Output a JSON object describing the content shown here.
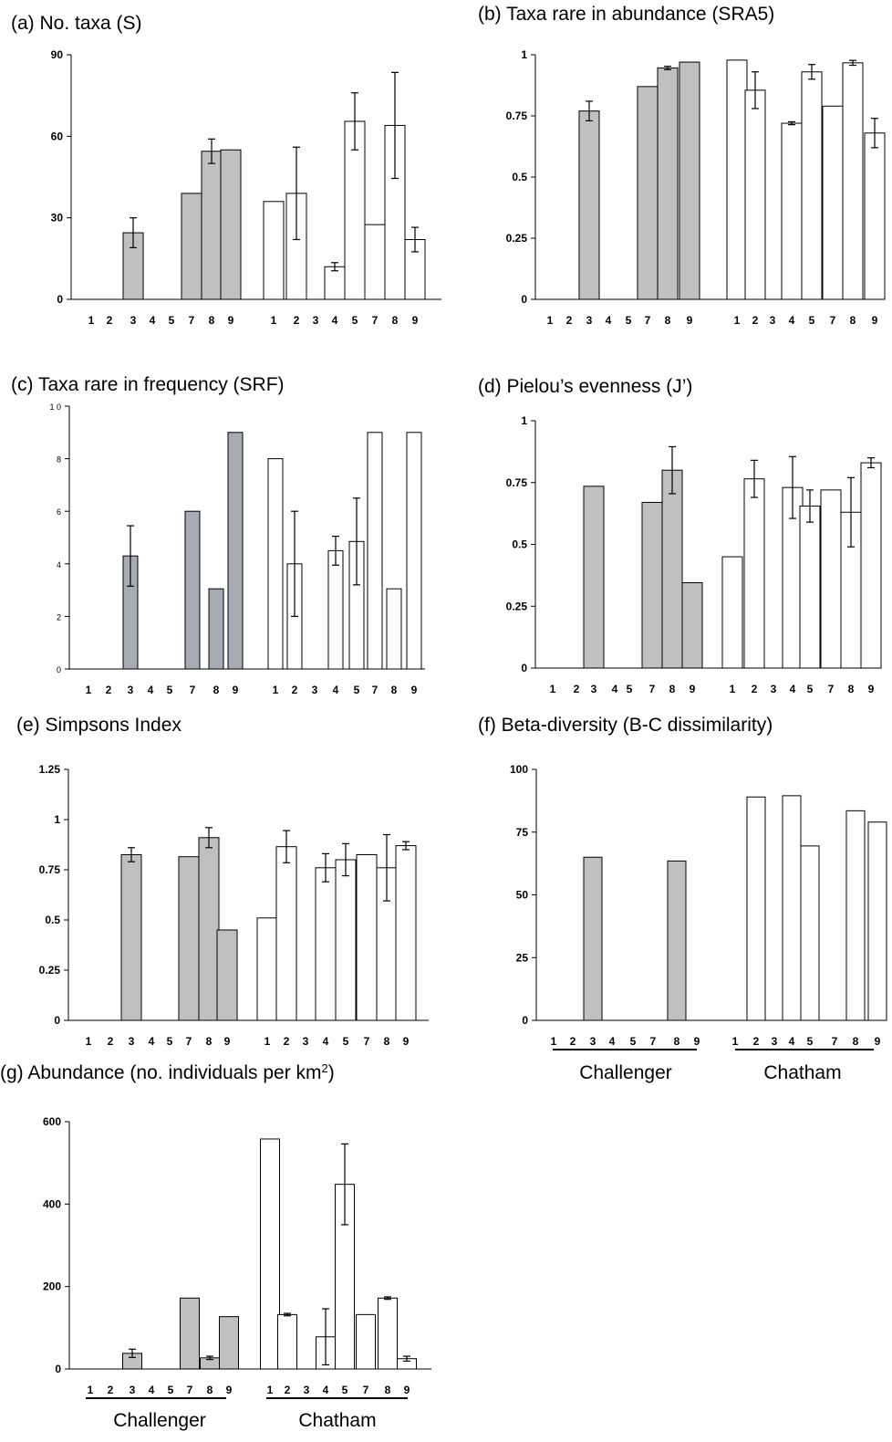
{
  "chart_data": [
    {
      "id": "a",
      "type": "bar",
      "title": "(a) No. taxa (S)",
      "yticks": [
        "0",
        "30",
        "60",
        "90"
      ],
      "ylim": [
        0,
        90
      ],
      "groups": [
        "Challenger",
        "Chatham"
      ],
      "categories": {
        "Challenger": [
          "1",
          "2",
          "3",
          "4",
          "5",
          "7",
          "8",
          "9"
        ],
        "Chatham": [
          "1",
          "2",
          "3",
          "4",
          "5",
          "7",
          "8",
          "9"
        ]
      },
      "series": [
        {
          "name": "Challenger",
          "color": "#c0c0c0",
          "values": [
            null,
            null,
            24.5,
            null,
            null,
            39,
            54.5,
            55
          ],
          "errors": [
            null,
            null,
            5.5,
            null,
            null,
            null,
            4.5,
            null
          ]
        },
        {
          "name": "Chatham",
          "color": "#ffffff",
          "values": [
            36,
            39,
            null,
            12,
            65.5,
            27.5,
            64,
            22
          ],
          "errors": [
            null,
            17,
            null,
            1.5,
            10.5,
            null,
            19.5,
            4.5
          ]
        }
      ]
    },
    {
      "id": "b",
      "type": "bar",
      "title": "(b) Taxa rare in abundance (SRA5)",
      "yticks": [
        "0",
        "0.25",
        "0.5",
        "0.75",
        "1"
      ],
      "ylim": [
        0,
        1
      ],
      "categories": {
        "Challenger": [
          "1",
          "2",
          "3",
          "4",
          "5",
          "7",
          "8",
          "9"
        ],
        "Chatham": [
          "1",
          "2",
          "3",
          "4",
          "5",
          "7",
          "8",
          "9"
        ]
      },
      "series": [
        {
          "name": "Challenger",
          "color": "#c0c0c0",
          "values": [
            null,
            null,
            0.77,
            null,
            null,
            0.87,
            0.946,
            0.97
          ],
          "errors": [
            null,
            null,
            0.04,
            null,
            null,
            null,
            0.007,
            null
          ]
        },
        {
          "name": "Chatham",
          "color": "#ffffff",
          "values": [
            0.978,
            0.855,
            null,
            0.72,
            0.93,
            0.79,
            0.967,
            0.68
          ],
          "errors": [
            null,
            0.075,
            null,
            0.006,
            0.03,
            null,
            0.01,
            0.06
          ]
        }
      ]
    },
    {
      "id": "c",
      "type": "bar",
      "title": "(c) Taxa rare in frequency (SRF)",
      "yticks": [
        "0",
        "2",
        "4",
        "6",
        "8",
        "1 0"
      ],
      "ylim": [
        0,
        10
      ],
      "categories": {
        "Challenger": [
          "1",
          "2",
          "3",
          "4",
          "5",
          "7",
          "8",
          "9"
        ],
        "Chatham": [
          "1",
          "2",
          "3",
          "4",
          "5",
          "7",
          "8",
          "9"
        ]
      },
      "series": [
        {
          "name": "Challenger",
          "color": "#a7abb4",
          "values": [
            0,
            0,
            4.3,
            0,
            0,
            6,
            3.05,
            9
          ],
          "errors": [
            null,
            null,
            1.15,
            null,
            null,
            null,
            null,
            null
          ]
        },
        {
          "name": "Chatham",
          "color": "#ffffff",
          "values": [
            8,
            4,
            null,
            4.5,
            4.85,
            9,
            3.05,
            9
          ],
          "errors": [
            null,
            2,
            null,
            0.55,
            1.65,
            null,
            null,
            null
          ]
        }
      ]
    },
    {
      "id": "d",
      "type": "bar",
      "title": "(d) Pielou’s evenness (J’)",
      "yticks": [
        "0",
        "0.25",
        "0.5",
        "0.75",
        "1"
      ],
      "ylim": [
        0,
        1
      ],
      "categories": {
        "Challenger": [
          "1",
          "2",
          "3",
          "4",
          "5",
          "7",
          "8",
          "9"
        ],
        "Chatham": [
          "1",
          "2",
          "3",
          "4",
          "5",
          "7",
          "8",
          "9"
        ]
      },
      "series": [
        {
          "name": "Challenger",
          "color": "#c0c0c0",
          "values": [
            null,
            null,
            0.735,
            null,
            null,
            0.67,
            0.8,
            0.345
          ],
          "errors": [
            null,
            null,
            null,
            null,
            null,
            null,
            0.095,
            null
          ]
        },
        {
          "name": "Chatham",
          "color": "#ffffff",
          "values": [
            0.45,
            0.765,
            null,
            0.73,
            0.655,
            0.72,
            0.63,
            0.83
          ],
          "errors": [
            null,
            0.075,
            null,
            0.125,
            0.065,
            null,
            0.14,
            0.02
          ]
        }
      ]
    },
    {
      "id": "e",
      "type": "bar",
      "title": "(e) Simpsons Index",
      "yticks": [
        "0",
        "0.25",
        "0.5",
        "0.75",
        "1",
        "1.25"
      ],
      "ylim": [
        0,
        1.25
      ],
      "categories": {
        "Challenger": [
          "1",
          "2",
          "3",
          "4",
          "5",
          "7",
          "8",
          "9"
        ],
        "Chatham": [
          "1",
          "2",
          "3",
          "4",
          "5",
          "7",
          "8",
          "9"
        ]
      },
      "series": [
        {
          "name": "Challenger",
          "color": "#c0c0c0",
          "values": [
            null,
            null,
            0.825,
            null,
            null,
            0.815,
            0.91,
            0.45
          ],
          "errors": [
            null,
            null,
            0.035,
            null,
            null,
            null,
            0.05,
            null
          ]
        },
        {
          "name": "Chatham",
          "color": "#ffffff",
          "values": [
            0.51,
            0.865,
            null,
            0.76,
            0.8,
            0.825,
            0.76,
            0.87
          ],
          "errors": [
            null,
            0.08,
            null,
            0.07,
            0.08,
            null,
            0.165,
            0.02
          ]
        }
      ]
    },
    {
      "id": "f",
      "type": "bar",
      "title": "(f) Beta-diversity (B-C dissimilarity)",
      "yticks": [
        "0",
        "25",
        "50",
        "75",
        "100"
      ],
      "ylim": [
        0,
        100
      ],
      "group_labels": [
        "Challenger",
        "Chatham"
      ],
      "categories": {
        "Challenger": [
          "1",
          "2",
          "3",
          "4",
          "5",
          "7",
          "8",
          "9"
        ],
        "Chatham": [
          "1",
          "2",
          "3",
          "4",
          "5",
          "7",
          "8",
          "9"
        ]
      },
      "series": [
        {
          "name": "Challenger",
          "color": "#c0c0c0",
          "values": [
            null,
            null,
            65,
            null,
            null,
            null,
            63.5,
            null
          ],
          "errors": [
            null,
            null,
            null,
            null,
            null,
            null,
            null,
            null
          ]
        },
        {
          "name": "Chatham",
          "color": "#ffffff",
          "values": [
            null,
            89,
            null,
            89.5,
            69.5,
            null,
            83.5,
            79
          ],
          "errors": [
            null,
            null,
            null,
            null,
            null,
            null,
            null,
            null
          ]
        }
      ]
    },
    {
      "id": "g",
      "type": "bar",
      "title": "(g) Abundance (no. individuals per km",
      "title_sup": "2",
      "title_end": ")",
      "yticks": [
        "0",
        "200",
        "400",
        "600"
      ],
      "ylim": [
        0,
        600
      ],
      "group_labels": [
        "Challenger",
        "Chatham"
      ],
      "categories": {
        "Challenger": [
          "1",
          "2",
          "3",
          "4",
          "5",
          "7",
          "8",
          "9"
        ],
        "Chatham": [
          "1",
          "2",
          "3",
          "4",
          "5",
          "7",
          "8",
          "9"
        ]
      },
      "series": [
        {
          "name": "Challenger",
          "color": "#c0c0c0",
          "values": [
            null,
            null,
            38,
            null,
            null,
            172,
            27,
            127
          ],
          "errors": [
            null,
            null,
            10,
            null,
            null,
            null,
            4,
            null
          ]
        },
        {
          "name": "Chatham",
          "color": "#ffffff",
          "values": [
            558,
            132,
            null,
            78,
            448,
            132,
            172,
            25
          ],
          "errors": [
            null,
            3,
            null,
            68,
            98,
            null,
            3,
            6
          ]
        }
      ]
    }
  ]
}
